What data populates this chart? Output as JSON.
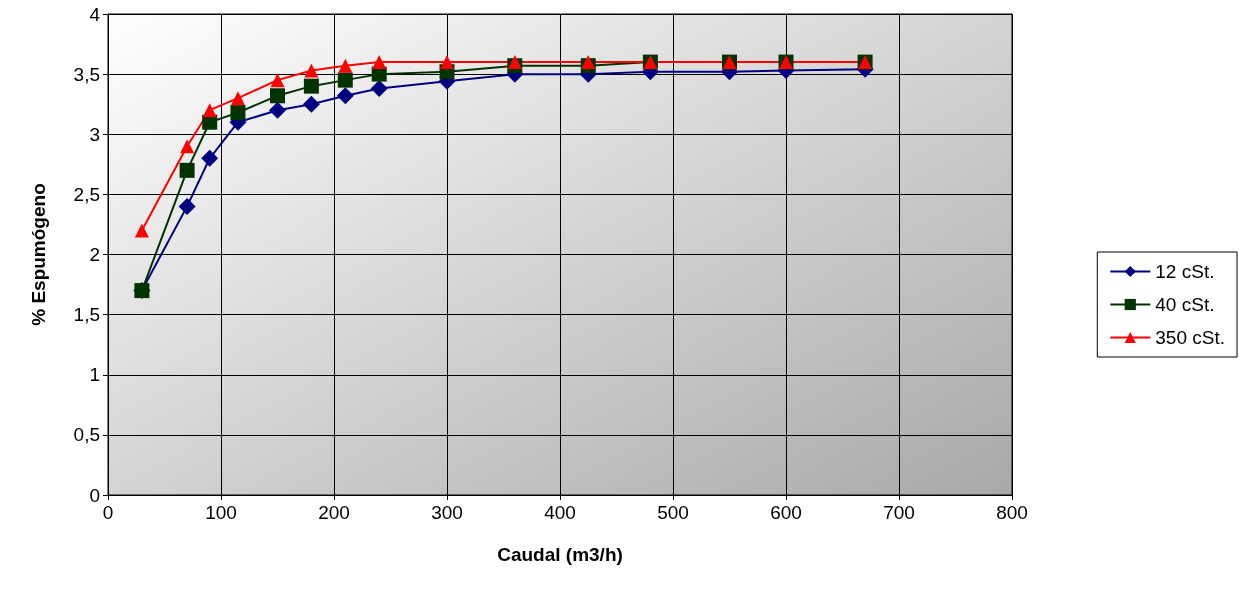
{
  "chart_data": {
    "type": "line",
    "xlabel": "Caudal (m3/h)",
    "ylabel": "% Espumógeno",
    "x": [
      30,
      70,
      90,
      115,
      150,
      180,
      210,
      240,
      300,
      360,
      425,
      480,
      550,
      600,
      670
    ],
    "series": [
      {
        "name": "12 cSt.",
        "color": "#000080",
        "marker": "diamond",
        "values": [
          1.7,
          2.4,
          2.8,
          3.1,
          3.2,
          3.25,
          3.32,
          3.38,
          3.44,
          3.5,
          3.5,
          3.52,
          3.52,
          3.53,
          3.54
        ]
      },
      {
        "name": "40 cSt.",
        "color": "#003300",
        "marker": "square",
        "values": [
          1.7,
          2.7,
          3.1,
          3.18,
          3.32,
          3.4,
          3.45,
          3.5,
          3.52,
          3.57,
          3.57,
          3.6,
          3.6,
          3.6,
          3.6
        ]
      },
      {
        "name": "350 cSt.",
        "color": "#ff0000",
        "marker": "triangle",
        "values": [
          2.2,
          2.9,
          3.2,
          3.3,
          3.45,
          3.53,
          3.57,
          3.6,
          3.6,
          3.6,
          3.6,
          3.6,
          3.6,
          3.6,
          3.6
        ]
      }
    ],
    "xlim": [
      0,
      800
    ],
    "xticks": [
      0,
      100,
      200,
      300,
      400,
      500,
      600,
      700,
      800
    ],
    "ylim": [
      0,
      4
    ],
    "yticks": [
      0,
      {
        "value": 0.5,
        "label": "0,5"
      },
      1,
      {
        "value": 1.5,
        "label": "1,5"
      },
      2,
      {
        "value": 2.5,
        "label": "2,5"
      },
      3,
      {
        "value": 3.5,
        "label": "3,5"
      },
      4
    ],
    "grid": true,
    "legend": "right",
    "line_style": "solid"
  }
}
